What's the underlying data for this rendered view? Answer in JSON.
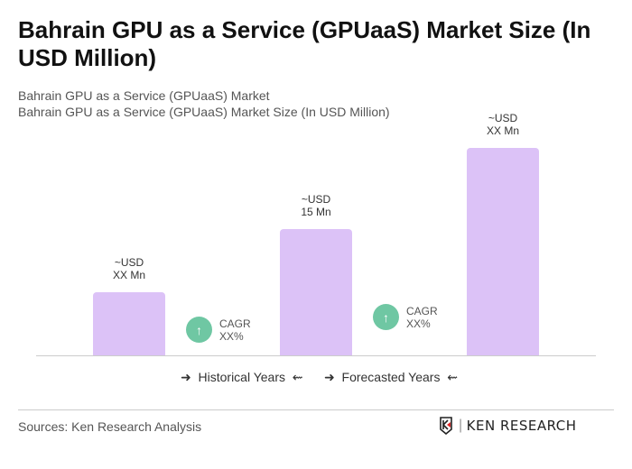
{
  "title": "Bahrain GPU as a Service (GPUaaS) Market Size (In USD Million)",
  "subtitle1": "Bahrain GPU as a Service (GPUaaS) Market",
  "subtitle2": "Bahrain GPU as a Service (GPUaaS) Market Size (In USD Million)",
  "chart_data": {
    "type": "bar",
    "categories": [
      "",
      "",
      ""
    ],
    "values": [
      7.5,
      15,
      24.6
    ],
    "data_labels": [
      [
        "~USD",
        "XX Mn"
      ],
      [
        "~USD",
        "15 Mn"
      ],
      [
        "~USD",
        "XX Mn"
      ]
    ],
    "bar_color": "#dcc2f7",
    "cagr": [
      {
        "label": "CAGR",
        "value": "XX%"
      },
      {
        "label": "CAGR",
        "value": "XX%"
      }
    ],
    "cagr_color": "#6fc7a3",
    "legend": [
      "Historical Years",
      "Forecasted Years"
    ],
    "grid": false
  },
  "icons": {
    "cagr": "arrow-up-icon",
    "legend_left": "arrow-right-icon",
    "legend_right": "arrow-left-icon"
  },
  "footer": {
    "source": "Sources: Ken Research Analysis",
    "logo_text": "KEN RESEARCH"
  }
}
